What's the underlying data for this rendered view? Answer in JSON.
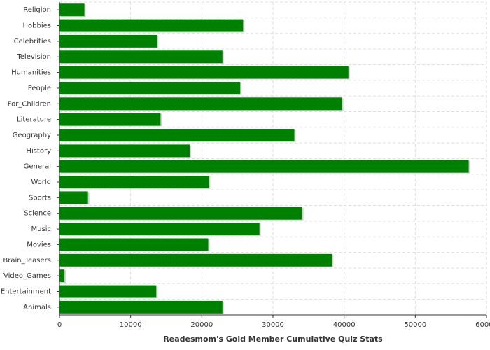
{
  "chart_data": {
    "type": "bar",
    "orientation": "horizontal",
    "xlabel": "Readesmom's Gold Member Cumulative Quiz Stats",
    "categories": [
      "Religion",
      "Hobbies",
      "Celebrities",
      "Television",
      "Humanities",
      "People",
      "For_Children",
      "Literature",
      "Geography",
      "History",
      "General",
      "World",
      "Sports",
      "Science",
      "Music",
      "Movies",
      "Brain_Teasers",
      "Video_Games",
      "Entertainment",
      "Animals"
    ],
    "values": [
      3500,
      25800,
      13700,
      22900,
      40600,
      25400,
      39700,
      14200,
      33000,
      18300,
      57500,
      21000,
      4000,
      34100,
      28100,
      20900,
      38300,
      700,
      13600,
      22900
    ],
    "color": "#008000",
    "xlim": [
      0,
      60000
    ],
    "xticks": [
      0,
      10000,
      20000,
      30000,
      40000,
      50000,
      60000
    ],
    "grid": true
  }
}
